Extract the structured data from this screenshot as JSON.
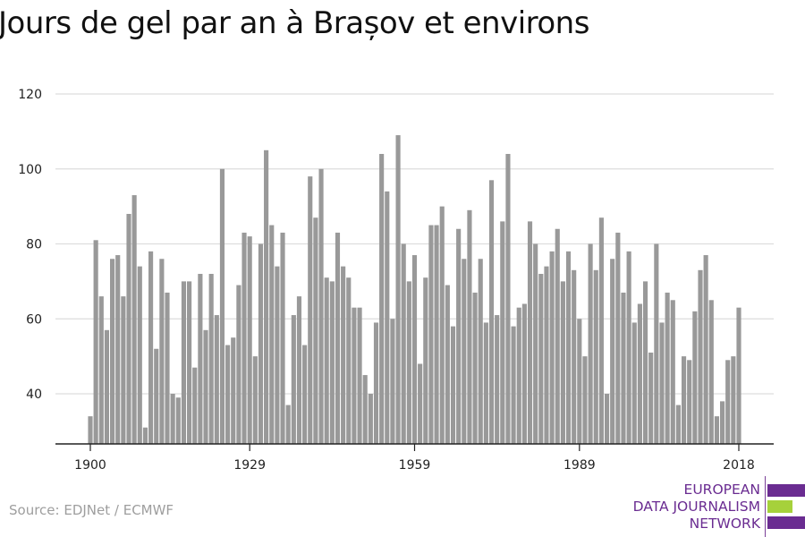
{
  "title": "Jours de gel par an à Brașov et environs",
  "source": "Source: EDJNet / ECMWF",
  "logo": {
    "line1": "EUROPEAN",
    "line2": "DATA JOURNALISM",
    "line3": "NETWORK",
    "colors": {
      "purple": "#6a2c91",
      "green": "#a6d13b"
    }
  },
  "colors": {
    "bar": "#999999",
    "grid": "#dddddd",
    "axis": "#222222",
    "tick_text": "#222222"
  },
  "chart_data": {
    "type": "bar",
    "x_start_year": 1900,
    "x_end_year": 2018,
    "x_ticks": [
      "1900",
      "1929",
      "1959",
      "1989",
      "2018"
    ],
    "y_ticks": [
      "40",
      "60",
      "80",
      "100",
      "120"
    ],
    "ylim": [
      26,
      120
    ],
    "grid": true,
    "values": [
      34,
      81,
      66,
      57,
      76,
      77,
      66,
      88,
      93,
      74,
      31,
      78,
      52,
      76,
      67,
      40,
      39,
      70,
      70,
      47,
      72,
      57,
      72,
      61,
      100,
      53,
      55,
      69,
      83,
      82,
      50,
      80,
      105,
      85,
      74,
      83,
      37,
      61,
      66,
      53,
      98,
      87,
      100,
      71,
      70,
      83,
      74,
      71,
      63,
      63,
      45,
      40,
      59,
      104,
      94,
      60,
      109,
      80,
      70,
      77,
      48,
      71,
      85,
      85,
      90,
      69,
      58,
      84,
      76,
      89,
      67,
      76,
      59,
      97,
      61,
      86,
      104,
      58,
      63,
      64,
      86,
      80,
      72,
      74,
      78,
      84,
      70,
      78,
      73,
      60,
      50,
      80,
      73,
      87,
      40,
      76,
      83,
      67,
      78,
      59,
      64,
      70,
      51,
      80,
      59,
      67,
      65,
      37,
      50,
      49,
      62,
      73,
      77,
      65,
      34,
      38,
      49,
      50,
      63
    ]
  }
}
